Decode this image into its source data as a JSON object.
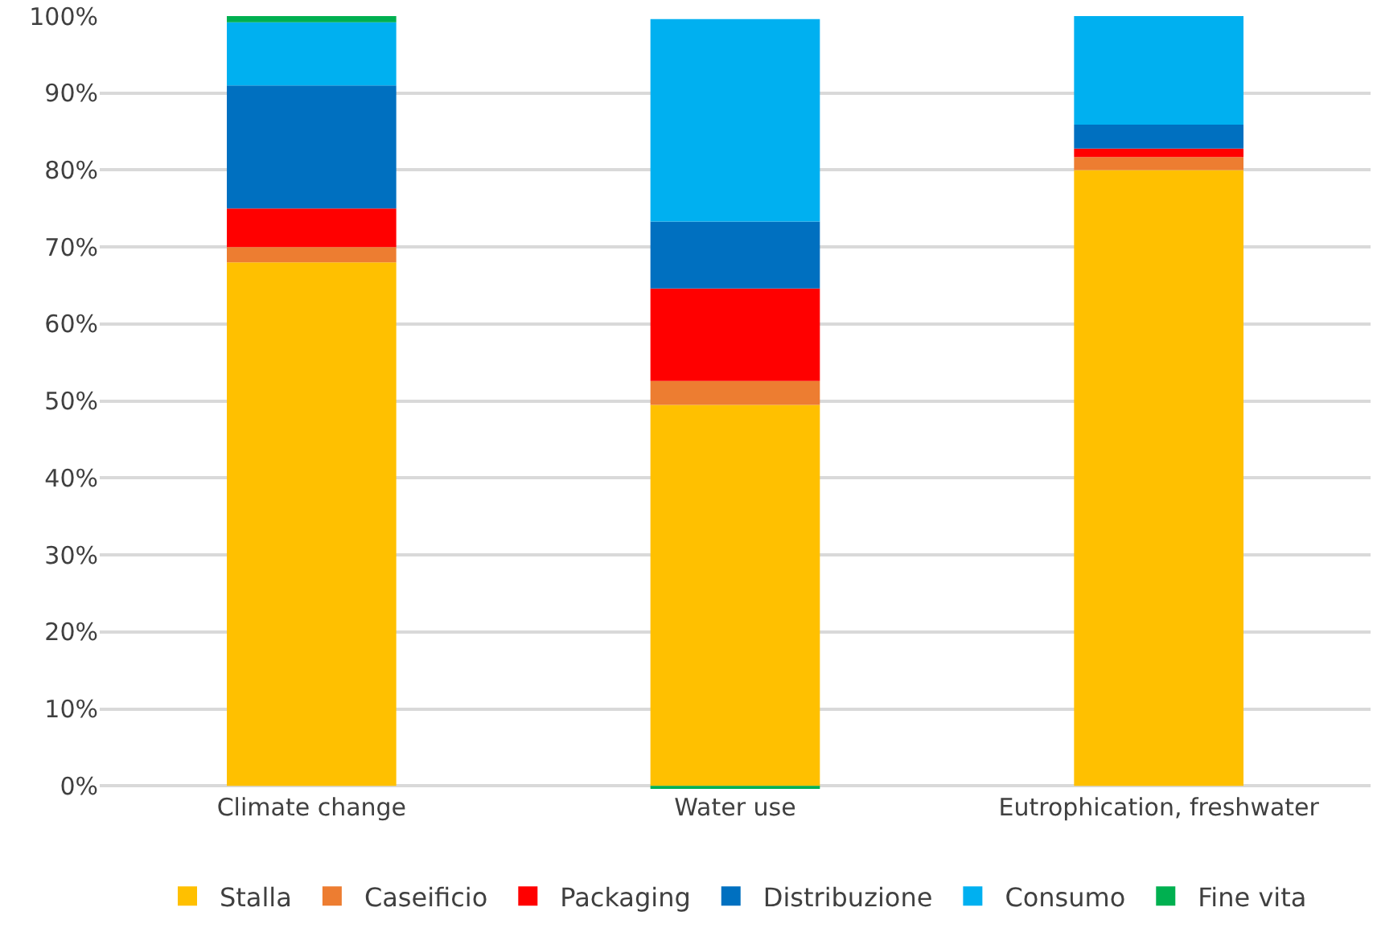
{
  "chart_data": {
    "type": "bar",
    "stacked": true,
    "categories": [
      "Climate change",
      "Water use",
      "Eutrophication, freshwater"
    ],
    "series": [
      {
        "name": "Stalla",
        "color": "#ffc000",
        "values": [
          68,
          49.5,
          80
        ]
      },
      {
        "name": "Caseificio",
        "color": "#ed7d31",
        "values": [
          2,
          3.1,
          1.7
        ]
      },
      {
        "name": "Packaging",
        "color": "#ff0000",
        "values": [
          5,
          12,
          1.1
        ]
      },
      {
        "name": "Distribuzione",
        "color": "#0070c0",
        "values": [
          16,
          8.7,
          3.1
        ]
      },
      {
        "name": "Consumo",
        "color": "#00b0f0",
        "values": [
          8.2,
          26.3,
          14.1
        ]
      },
      {
        "name": "Fine vita",
        "color": "#00b050",
        "values": [
          0.8,
          -0.4,
          0
        ]
      }
    ],
    "ylim": [
      -0.5,
      100
    ],
    "yticks": [
      {
        "value": 0,
        "label": "0%"
      },
      {
        "value": 10,
        "label": "10%"
      },
      {
        "value": 20,
        "label": "20%"
      },
      {
        "value": 30,
        "label": "30%"
      },
      {
        "value": 40,
        "label": "40%"
      },
      {
        "value": 50,
        "label": "50%"
      },
      {
        "value": 60,
        "label": "60%"
      },
      {
        "value": 70,
        "label": "70%"
      },
      {
        "value": 80,
        "label": "80%"
      },
      {
        "value": 90,
        "label": "90%"
      },
      {
        "value": 100,
        "label": "100%"
      }
    ],
    "grid": "y",
    "legend": "bottom"
  }
}
